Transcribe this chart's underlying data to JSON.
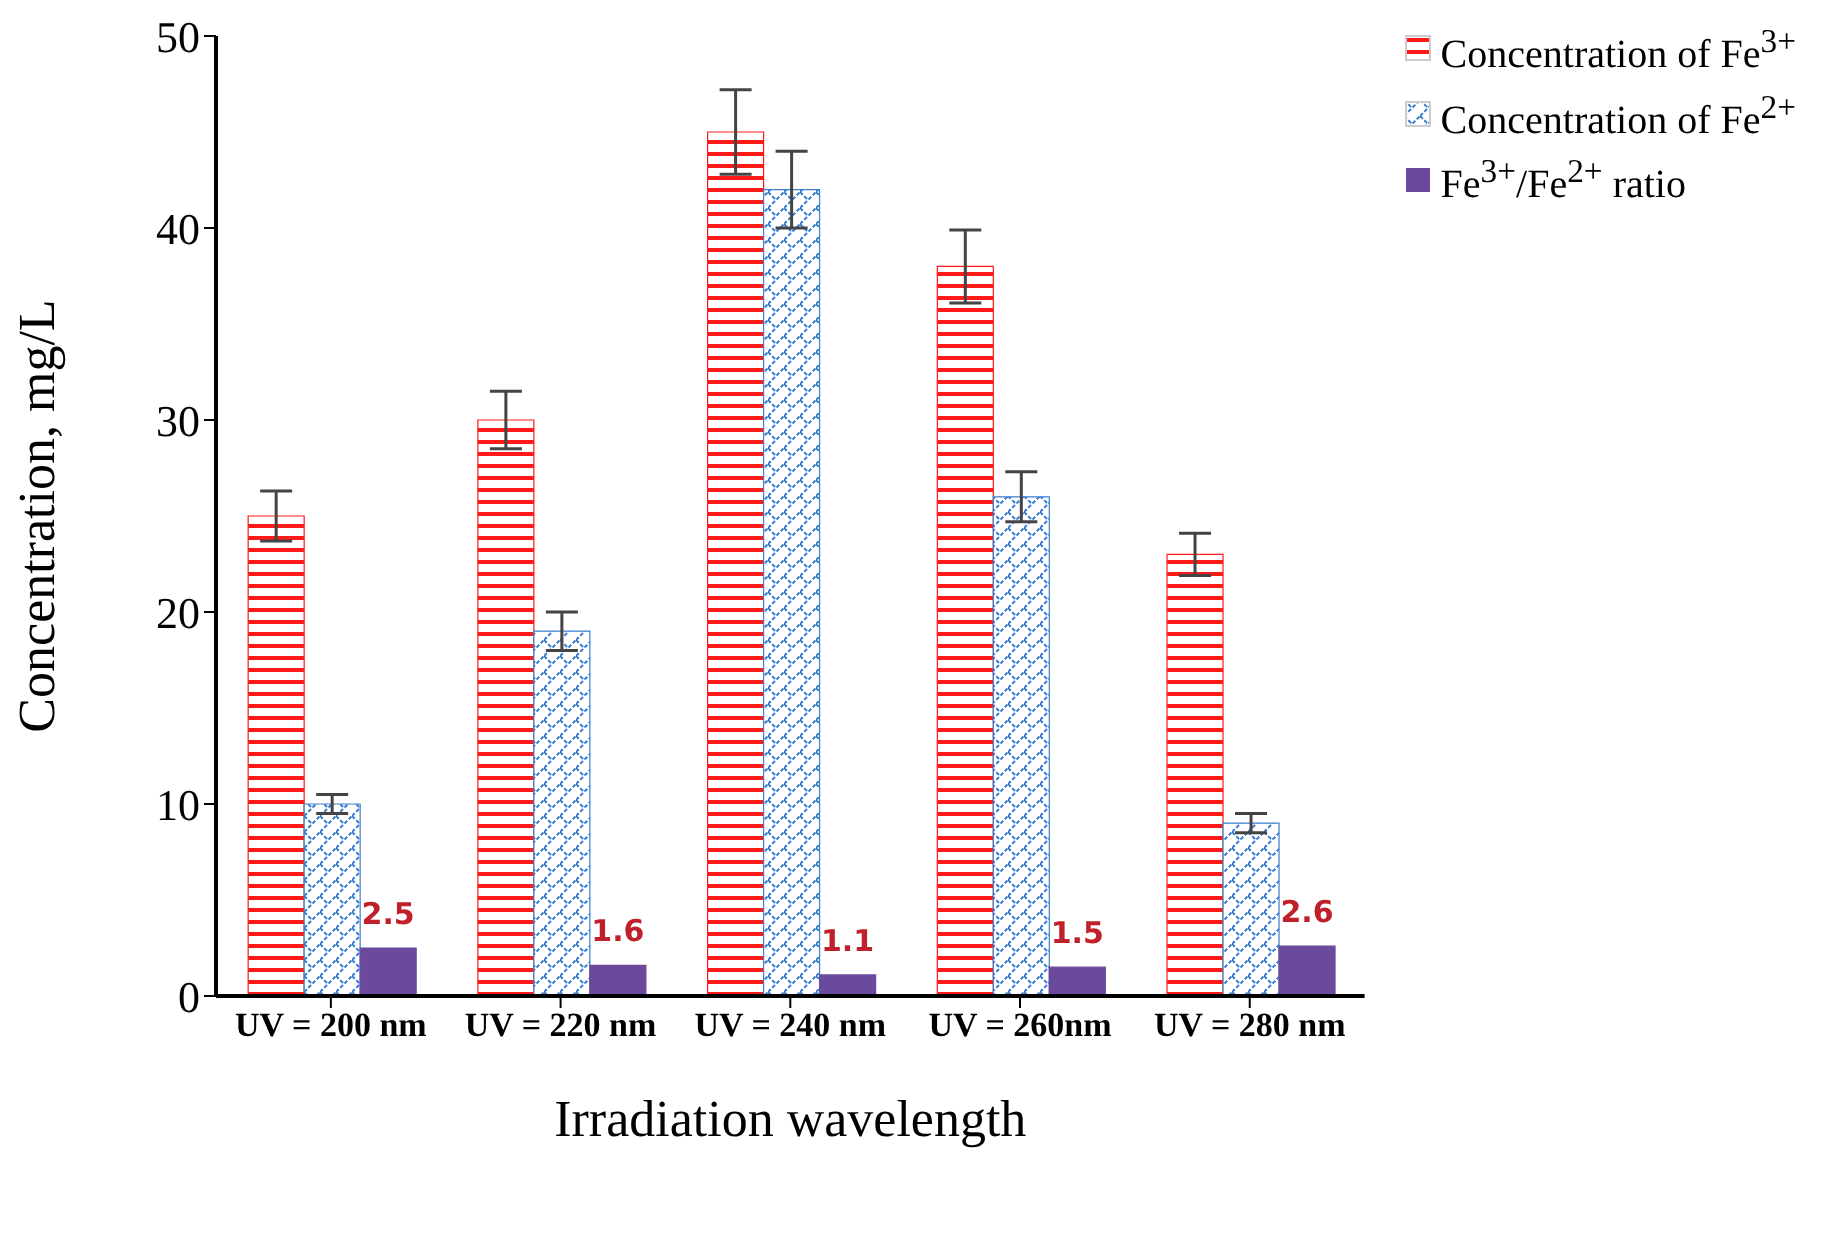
{
  "chart_data": {
    "type": "bar",
    "xlabel": "Irradiation wavelength",
    "ylabel": "Concentration, mg/L",
    "categories": [
      "UV = 200 nm",
      "UV = 220 nm",
      "UV = 240 nm",
      "UV = 260nm",
      "UV =  280 nm"
    ],
    "series": [
      {
        "name": "Concentration of Fe$^{3+}$",
        "color": "#ff1a1a",
        "values": [
          25,
          30,
          45,
          38,
          23
        ],
        "errors": [
          1.3,
          1.5,
          2.2,
          1.9,
          1.1
        ]
      },
      {
        "name": "Concentration of Fe$^{2+}$",
        "color": "#3a7fd0",
        "values": [
          10,
          19,
          42,
          26,
          9
        ],
        "errors": [
          0.5,
          1.0,
          2.0,
          1.3,
          0.5
        ]
      },
      {
        "name": "Fe$^{3+}$/Fe$^{2+}$ ratio",
        "color": "#6b4a9e",
        "values": [
          2.5,
          1.6,
          1.1,
          1.5,
          2.6
        ],
        "value_labels": [
          "2.5",
          "1.6",
          "1.1",
          "1.5",
          "2.6"
        ]
      }
    ],
    "ylim": [
      0,
      50
    ],
    "yticks": [
      0,
      10,
      20,
      30,
      40,
      50
    ],
    "legend": "top right"
  }
}
